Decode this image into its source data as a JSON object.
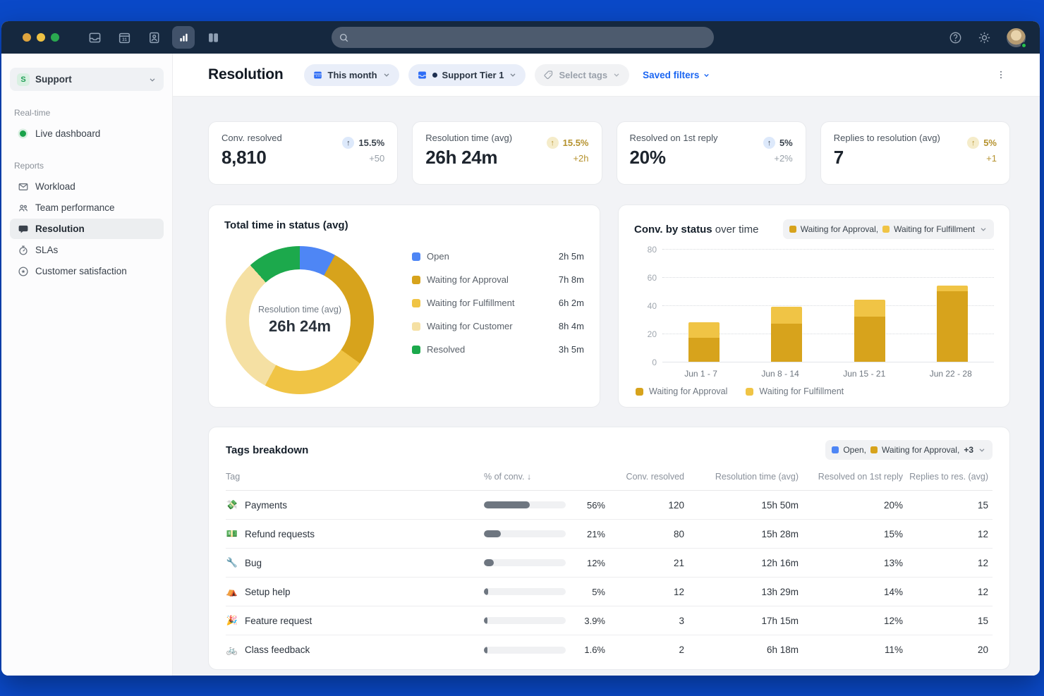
{
  "window": {
    "traffic_lights": [
      {
        "name": "close-button",
        "color": "#dfa43e"
      },
      {
        "name": "minimize-button",
        "color": "#eec244"
      },
      {
        "name": "zoom-button",
        "color": "#2aa850"
      }
    ]
  },
  "titlebar": {
    "icons": [
      {
        "name": "inbox-icon",
        "active": false
      },
      {
        "name": "calendar-icon",
        "active": false
      },
      {
        "name": "contacts-icon",
        "active": false
      },
      {
        "name": "reports-icon",
        "active": true
      },
      {
        "name": "book-icon",
        "active": false
      }
    ],
    "search": {
      "placeholder": ""
    },
    "right_icons": [
      "help-icon",
      "gear-icon",
      "avatar"
    ]
  },
  "sidebar": {
    "workspace": {
      "badge": "S",
      "name": "Support"
    },
    "sections": [
      {
        "label": "Real-time",
        "items": [
          {
            "label": "Live dashboard",
            "icon": "live-dot",
            "active": false
          }
        ]
      },
      {
        "label": "Reports",
        "items": [
          {
            "label": "Workload",
            "icon": "envelope-icon",
            "active": false
          },
          {
            "label": "Team performance",
            "icon": "people-icon",
            "active": false
          },
          {
            "label": "Resolution",
            "icon": "chat-icon",
            "active": true
          },
          {
            "label": "SLAs",
            "icon": "stopwatch-icon",
            "active": false
          },
          {
            "label": "Customer satisfaction",
            "icon": "star-circle-icon",
            "active": false
          }
        ]
      }
    ]
  },
  "header": {
    "title": "Resolution",
    "filters": [
      {
        "label": "This month",
        "icon": "calendar-blue-icon",
        "style": "blue",
        "dot": false
      },
      {
        "label": "Support Tier 1",
        "icon": "inbox-blue-icon",
        "style": "blue",
        "dot": true
      },
      {
        "label": "Select tags",
        "icon": "tag-icon",
        "style": "muted",
        "dot": false
      }
    ],
    "saved_filters_label": "Saved filters"
  },
  "kpis": [
    {
      "label": "Conv. resolved",
      "value": "8,810",
      "arrow": "↑",
      "pct": "15.5%",
      "delta": "+50",
      "tone": "blue"
    },
    {
      "label": "Resolution time (avg)",
      "value": "26h 24m",
      "arrow": "↑",
      "pct": "15.5%",
      "delta": "+2h",
      "tone": "gold"
    },
    {
      "label": "Resolved on 1st reply",
      "value": "20%",
      "arrow": "↑",
      "pct": "5%",
      "delta": "+2%",
      "tone": "blue"
    },
    {
      "label": "Replies to resolution (avg)",
      "value": "7",
      "arrow": "↑",
      "pct": "5%",
      "delta": "+1",
      "tone": "gold"
    }
  ],
  "chart_data": [
    {
      "id": "total-time-in-status",
      "type": "pie",
      "title": "Total time in status (avg)",
      "center_label": "Resolution time (avg)",
      "center_value": "26h 24m",
      "slices": [
        {
          "label": "Open",
          "minutes": 125,
          "display": "2h 5m",
          "color": "#4e86f5"
        },
        {
          "label": "Waiting for Approval",
          "minutes": 428,
          "display": "7h 8m",
          "color": "#d7a31c"
        },
        {
          "label": "Waiting for Fulfillment",
          "minutes": 362,
          "display": "6h 2m",
          "color": "#f0c445"
        },
        {
          "label": "Waiting for Customer",
          "minutes": 484,
          "display": "8h 4m",
          "color": "#f5e0a3"
        },
        {
          "label": "Resolved",
          "minutes": 185,
          "display": "3h 5m",
          "color": "#1ca94c"
        }
      ]
    },
    {
      "id": "conv-by-status-over-time",
      "type": "bar",
      "stacked": true,
      "title_bold": "Conv. by status",
      "title_rest": " over time",
      "categories": [
        "Jun 1 - 7",
        "Jun 8 - 14",
        "Jun 15 - 21",
        "Jun 22 - 28"
      ],
      "series": [
        {
          "name": "Waiting for Approval",
          "color": "#d7a31c",
          "values": [
            17,
            27,
            32,
            50
          ]
        },
        {
          "name": "Waiting for Fulfillment",
          "color": "#f0c445",
          "values": [
            11,
            12,
            12,
            4
          ]
        }
      ],
      "ylim": [
        0,
        80
      ],
      "yticks": [
        80,
        60,
        40,
        20,
        0
      ],
      "grid": "dotted",
      "legend_position": "bottom",
      "filter_chip": {
        "items": [
          {
            "label": "Waiting for Approval,",
            "color": "#d7a31c"
          },
          {
            "label": "Waiting for Fulfillment",
            "color": "#f0c445"
          }
        ]
      }
    }
  ],
  "tags_card": {
    "title": "Tags breakdown",
    "filter_chip": {
      "items": [
        {
          "label": "Open,",
          "color": "#4e86f5"
        },
        {
          "label": "Waiting for Approval,",
          "color": "#d7a31c"
        }
      ],
      "more": "+3"
    },
    "columns": [
      "Tag",
      "% of conv. ↓",
      "Conv. resolved",
      "Resolution time (avg)",
      "Resolved on 1st reply",
      "Replies to res. (avg)"
    ],
    "rows": [
      {
        "emoji": "💸",
        "tag": "Payments",
        "pct": 56,
        "pct_label": "56%",
        "conv_resolved": "120",
        "resolution_time": "15h 50m",
        "resolved_first": "20%",
        "replies": "15"
      },
      {
        "emoji": "💵",
        "tag": "Refund requests",
        "pct": 21,
        "pct_label": "21%",
        "conv_resolved": "80",
        "resolution_time": "15h 28m",
        "resolved_first": "15%",
        "replies": "12"
      },
      {
        "emoji": "🔧",
        "tag": "Bug",
        "pct": 12,
        "pct_label": "12%",
        "conv_resolved": "21",
        "resolution_time": "12h 16m",
        "resolved_first": "13%",
        "replies": "12"
      },
      {
        "emoji": "⛺",
        "tag": "Setup help",
        "pct": 5,
        "pct_label": "5%",
        "conv_resolved": "12",
        "resolution_time": "13h 29m",
        "resolved_first": "14%",
        "replies": "12"
      },
      {
        "emoji": "🎉",
        "tag": "Feature request",
        "pct": 3.9,
        "pct_label": "3.9%",
        "conv_resolved": "3",
        "resolution_time": "17h 15m",
        "resolved_first": "12%",
        "replies": "15"
      },
      {
        "emoji": "🚲",
        "tag": "Class feedback",
        "pct": 1.6,
        "pct_label": "1.6%",
        "conv_resolved": "2",
        "resolution_time": "6h 18m",
        "resolved_first": "11%",
        "replies": "20"
      }
    ]
  }
}
